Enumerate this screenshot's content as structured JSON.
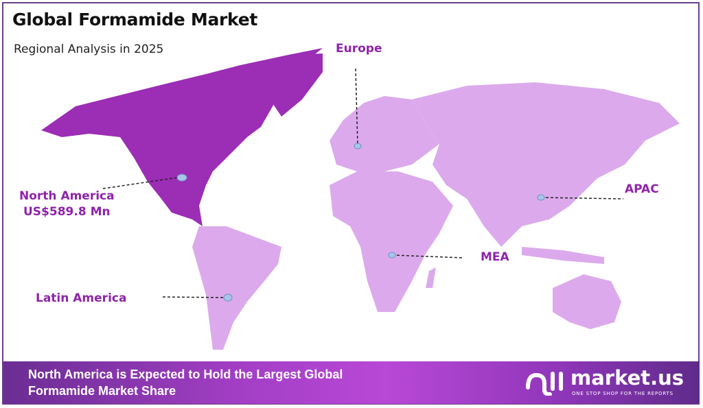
{
  "header": {
    "title": "Global Formamide Market",
    "subtitle": "Regional Analysis in 2025"
  },
  "colors": {
    "highlight_region": "#9c2db5",
    "other_regions": "#dcaaec",
    "label": "#8e24aa",
    "marker": "#a9c4ea"
  },
  "regions": [
    {
      "name": "North America",
      "value": "US$589.8 Mn",
      "highlighted": true
    },
    {
      "name": "Europe",
      "highlighted": false
    },
    {
      "name": "APAC",
      "highlighted": false
    },
    {
      "name": "MEA",
      "highlighted": false
    },
    {
      "name": "Latin America",
      "highlighted": false
    }
  ],
  "banner": {
    "line1": "North America is Expected to Hold the Largest Global",
    "line2": "Formamide Market Share"
  },
  "logo": {
    "name": "market.us",
    "tagline": "ONE STOP SHOP FOR THE REPORTS",
    "icon": "market-us-logo-icon"
  }
}
